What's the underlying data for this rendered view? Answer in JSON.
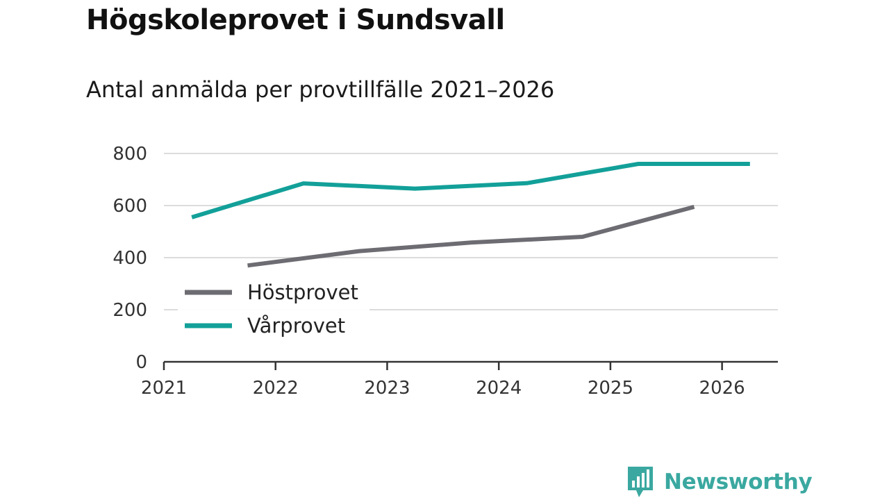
{
  "header": {
    "title": "Högskoleprovet i Sundsvall",
    "subtitle": "Antal anmälda per provtillfälle 2021–2026"
  },
  "brand": {
    "name": "Newsworthy",
    "color": "#3aa8a0"
  },
  "chart_data": {
    "type": "line",
    "title": "Högskoleprovet i Sundsvall",
    "subtitle": "Antal anmälda per provtillfälle 2021–2026",
    "xlabel": "",
    "ylabel": "",
    "xlim": [
      2021,
      2026.5
    ],
    "ylim": [
      0,
      800
    ],
    "x_ticks": [
      2021,
      2022,
      2023,
      2024,
      2025,
      2026
    ],
    "y_ticks": [
      0,
      200,
      400,
      600,
      800
    ],
    "grid": true,
    "legend_position": "bottom-left",
    "series": [
      {
        "name": "Höstprovet",
        "color": "#6d6c72",
        "x": [
          2021.75,
          2022.75,
          2023.75,
          2024.75,
          2025.75
        ],
        "values": [
          370,
          425,
          458,
          480,
          595
        ]
      },
      {
        "name": "Vårprovet",
        "color": "#12a099",
        "x": [
          2021.25,
          2022.25,
          2023.25,
          2024.25,
          2025.25,
          2026.25
        ],
        "values": [
          555,
          685,
          665,
          686,
          760,
          760
        ]
      }
    ]
  }
}
